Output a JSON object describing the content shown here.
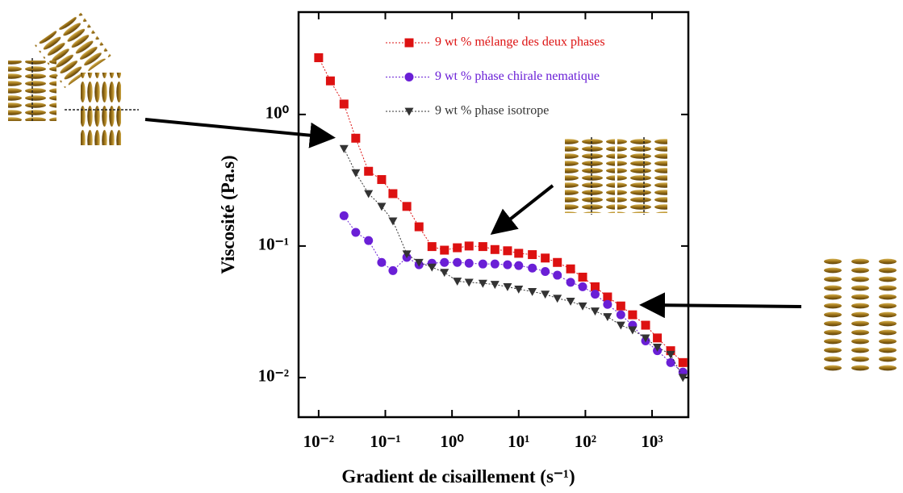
{
  "chart_data": {
    "type": "scatter",
    "xscale": "log",
    "yscale": "log",
    "x_label": "Gradient de cisaillement (s⁻¹)",
    "y_label": "Viscosité (Pa.s)",
    "xlim": [
      0.005,
      3500
    ],
    "ylim": [
      0.005,
      6
    ],
    "xticks": [
      {
        "value": 0.01,
        "label": "10⁻²"
      },
      {
        "value": 0.1,
        "label": "10⁻¹"
      },
      {
        "value": 1,
        "label": "10⁰"
      },
      {
        "value": 10,
        "label": "10¹"
      },
      {
        "value": 100,
        "label": "10²"
      },
      {
        "value": 1000,
        "label": "10³"
      }
    ],
    "yticks": [
      {
        "value": 0.01,
        "label": "10⁻²"
      },
      {
        "value": 0.1,
        "label": "10⁻¹"
      },
      {
        "value": 1,
        "label": "10⁰"
      }
    ],
    "legend_loc": "upper right",
    "series": [
      {
        "name": "9 wt % mélange des deux phases",
        "color": "#dd1111",
        "marker": "square",
        "x": [
          0.01,
          0.015,
          0.024,
          0.036,
          0.056,
          0.088,
          0.13,
          0.21,
          0.32,
          0.5,
          0.77,
          1.2,
          1.8,
          2.9,
          4.4,
          6.8,
          10,
          16,
          25,
          38,
          60,
          91,
          140,
          215,
          340,
          510,
          800,
          1200,
          1900,
          2900
        ],
        "values": [
          2.7,
          1.8,
          1.2,
          0.66,
          0.37,
          0.32,
          0.25,
          0.2,
          0.14,
          0.099,
          0.093,
          0.097,
          0.1,
          0.099,
          0.094,
          0.092,
          0.088,
          0.086,
          0.081,
          0.075,
          0.067,
          0.058,
          0.049,
          0.041,
          0.035,
          0.03,
          0.025,
          0.02,
          0.016,
          0.013
        ]
      },
      {
        "name": "9 wt % phase chirale nematique",
        "color": "#6a1fd6",
        "marker": "circle",
        "x": [
          0.024,
          0.036,
          0.056,
          0.088,
          0.13,
          0.21,
          0.32,
          0.5,
          0.77,
          1.2,
          1.8,
          2.9,
          4.4,
          6.8,
          10,
          16,
          25,
          38,
          60,
          91,
          140,
          215,
          340,
          510,
          800,
          1200,
          1900,
          2900
        ],
        "values": [
          0.17,
          0.127,
          0.11,
          0.075,
          0.065,
          0.082,
          0.072,
          0.074,
          0.075,
          0.075,
          0.074,
          0.073,
          0.073,
          0.072,
          0.071,
          0.068,
          0.064,
          0.06,
          0.053,
          0.049,
          0.043,
          0.036,
          0.03,
          0.025,
          0.019,
          0.016,
          0.013,
          0.011
        ]
      },
      {
        "name": "9 wt % phase isotrope",
        "color": "#333333",
        "marker": "triangle",
        "x": [
          0.024,
          0.036,
          0.056,
          0.088,
          0.13,
          0.21,
          0.32,
          0.5,
          0.77,
          1.2,
          1.8,
          2.9,
          4.4,
          6.8,
          10,
          16,
          25,
          38,
          60,
          91,
          140,
          215,
          340,
          510,
          800,
          1200,
          1900,
          2900
        ],
        "values": [
          0.55,
          0.36,
          0.25,
          0.2,
          0.155,
          0.087,
          0.075,
          0.069,
          0.063,
          0.054,
          0.053,
          0.052,
          0.051,
          0.049,
          0.047,
          0.045,
          0.043,
          0.04,
          0.038,
          0.035,
          0.032,
          0.029,
          0.025,
          0.023,
          0.02,
          0.017,
          0.015,
          0.01
        ]
      }
    ]
  }
}
